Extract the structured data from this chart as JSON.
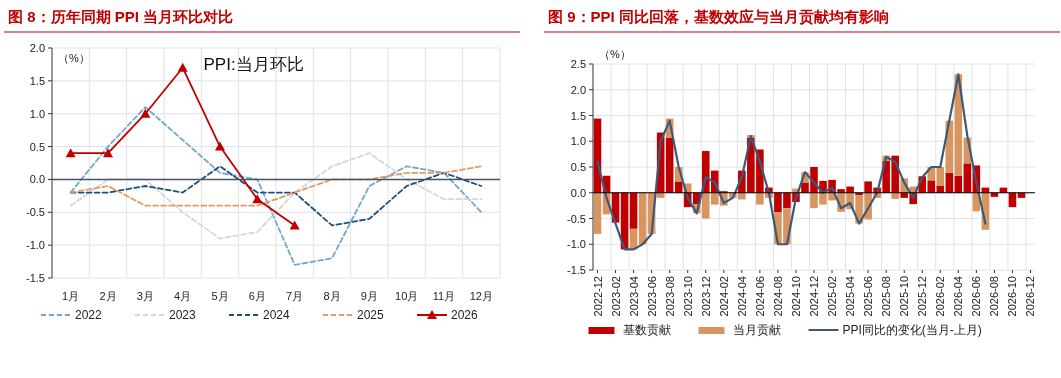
{
  "chart_data": [
    {
      "type": "line",
      "title": "图 8：历年同期 PPI 当月环比对比",
      "ylabel": "（%）",
      "annotations": [
        "PPI:当月环比"
      ],
      "categories": [
        "1月",
        "2月",
        "3月",
        "4月",
        "5月",
        "6月",
        "7月",
        "8月",
        "9月",
        "10月",
        "11月",
        "12月"
      ],
      "ylim": [
        -1.5,
        2.0
      ],
      "yticks": [
        {
          "value": -1.5,
          "label": "-1.5"
        },
        {
          "value": -1.0,
          "label": "-1.0"
        },
        {
          "value": -0.5,
          "label": "-0.5"
        },
        {
          "value": 0,
          "label": "0.0"
        },
        {
          "value": 0.5,
          "label": "0.5"
        },
        {
          "value": 1.0,
          "label": "1.0"
        },
        {
          "value": 1.5,
          "label": "1.5"
        },
        {
          "value": 2.0,
          "label": "2.0"
        }
      ],
      "grid": true,
      "legend": "bottom",
      "series": [
        {
          "name": "2022",
          "color": "#6fa8cc",
          "line_style": "dashed",
          "values": [
            -0.2,
            0.5,
            1.1,
            0.6,
            0.1,
            0.0,
            -1.3,
            -1.2,
            -0.1,
            0.2,
            0.1,
            -0.5
          ]
        },
        {
          "name": "2023",
          "color": "#d3d6dc",
          "line_style": "dashed",
          "values": [
            -0.4,
            0.0,
            0.0,
            -0.5,
            -0.9,
            -0.8,
            -0.2,
            0.2,
            0.4,
            0.0,
            -0.3,
            -0.3
          ]
        },
        {
          "name": "2024",
          "color": "#1f4e79",
          "line_style": "dashed",
          "values": [
            -0.2,
            -0.2,
            -0.1,
            -0.2,
            0.2,
            -0.2,
            -0.2,
            -0.7,
            -0.6,
            -0.1,
            0.1,
            -0.1
          ]
        },
        {
          "name": "2025",
          "color": "#e39a62",
          "line_style": "dashed",
          "values": [
            -0.2,
            -0.1,
            -0.4,
            -0.4,
            -0.4,
            -0.4,
            -0.2,
            0.0,
            0.0,
            0.1,
            0.1,
            0.2
          ]
        },
        {
          "name": "2026",
          "color": "#c00000",
          "line_style": "solid",
          "marker": "triangle",
          "values": [
            0.4,
            0.4,
            1.0,
            1.7,
            0.5,
            -0.3,
            -0.7,
            null,
            null,
            null,
            null,
            null
          ]
        }
      ]
    },
    {
      "type": "bar",
      "stacked": true,
      "title": "图 9：PPI 同比回落，基数效应与当月贡献均有影响",
      "ylabel": "（%）",
      "categories": [
        "2022-12",
        null,
        "2023-02",
        null,
        "2023-04",
        null,
        "2023-06",
        null,
        "2023-08",
        null,
        "2023-10",
        null,
        "2023-12",
        null,
        "2024-02",
        null,
        "2024-04",
        null,
        "2024-06",
        null,
        "2024-08",
        null,
        "2024-10",
        null,
        "2024-12",
        null,
        "2025-02",
        null,
        "2025-04",
        null,
        "2025-06",
        null,
        "2025-08",
        null,
        "2025-10",
        null,
        "2025-12",
        null,
        "2026-02",
        null,
        "2026-04",
        null,
        "2026-06",
        null,
        "2026-08",
        null,
        "2026-10",
        null,
        "2026-12"
      ],
      "ylim": [
        -1.5,
        2.5
      ],
      "yticks": [
        {
          "value": -1.5,
          "label": "-1.5"
        },
        {
          "value": -1.0,
          "label": "-1.0"
        },
        {
          "value": -0.5,
          "label": "-0.5"
        },
        {
          "value": 0,
          "label": "0.0"
        },
        {
          "value": 0.5,
          "label": "0.5"
        },
        {
          "value": 1.0,
          "label": "1.0"
        },
        {
          "value": 1.5,
          "label": "1.5"
        },
        {
          "value": 2.0,
          "label": "2.0"
        },
        {
          "value": 2.5,
          "label": "2.5"
        }
      ],
      "grid": true,
      "legend": "bottom",
      "series": [
        {
          "name": "基数贡献",
          "color": "#c00000",
          "values": [
            1.44,
            0.33,
            -0.58,
            -1.1,
            -0.7,
            0,
            0,
            1.17,
            1.07,
            0.22,
            -0.28,
            -0.22,
            0.81,
            0.43,
            0.03,
            0,
            0.43,
            1.07,
            0.84,
            0.1,
            -0.38,
            -0.3,
            -0.18,
            0.2,
            0.5,
            0.23,
            0.25,
            0.07,
            0.12,
            -0.05,
            0.22,
            0.1,
            0.62,
            0.72,
            -0.1,
            -0.22,
            0.32,
            0.24,
            0.14,
            0.39,
            0.33,
            0.57,
            0.53,
            0.1,
            -0.08,
            0.1,
            -0.28,
            -0.1,
            null
          ]
        },
        {
          "name": "当月贡献",
          "color": "#d9955f",
          "values": [
            -0.8,
            -0.42,
            0,
            0,
            -0.4,
            -1.0,
            -0.8,
            -0.1,
            0.37,
            0.28,
            0.18,
            -0.18,
            -0.5,
            -0.23,
            -0.25,
            -0.1,
            -0.13,
            0.05,
            -0.23,
            -0.1,
            -0.62,
            -0.7,
            0.08,
            0.2,
            -0.3,
            -0.23,
            -0.15,
            -0.37,
            -0.32,
            -0.55,
            -0.52,
            -0.1,
            0.1,
            -0.12,
            0.28,
            0.12,
            0,
            0.26,
            0.36,
            1.01,
            1.97,
            0.5,
            -0.36,
            -0.72,
            null,
            null,
            null,
            null,
            null
          ]
        },
        {
          "name": "PPI同比的变化(当月-上月)",
          "type": "line",
          "color": "#3c5a78",
          "values": [
            0.6,
            -0.1,
            -0.6,
            -1.1,
            -1.1,
            -1.0,
            -0.8,
            1.0,
            1.4,
            0.5,
            -0.1,
            -0.4,
            0.3,
            0.2,
            -0.2,
            -0.1,
            0.3,
            1.1,
            0.6,
            0.0,
            -1.0,
            -1.0,
            -0.1,
            0.4,
            0.2,
            0.0,
            0.1,
            -0.3,
            -0.2,
            -0.6,
            -0.3,
            0.0,
            0.7,
            0.6,
            0.2,
            -0.1,
            0.3,
            0.5,
            0.5,
            1.4,
            2.3,
            1.1,
            0.2,
            -0.6,
            null,
            null,
            null,
            null,
            null
          ]
        }
      ]
    }
  ]
}
